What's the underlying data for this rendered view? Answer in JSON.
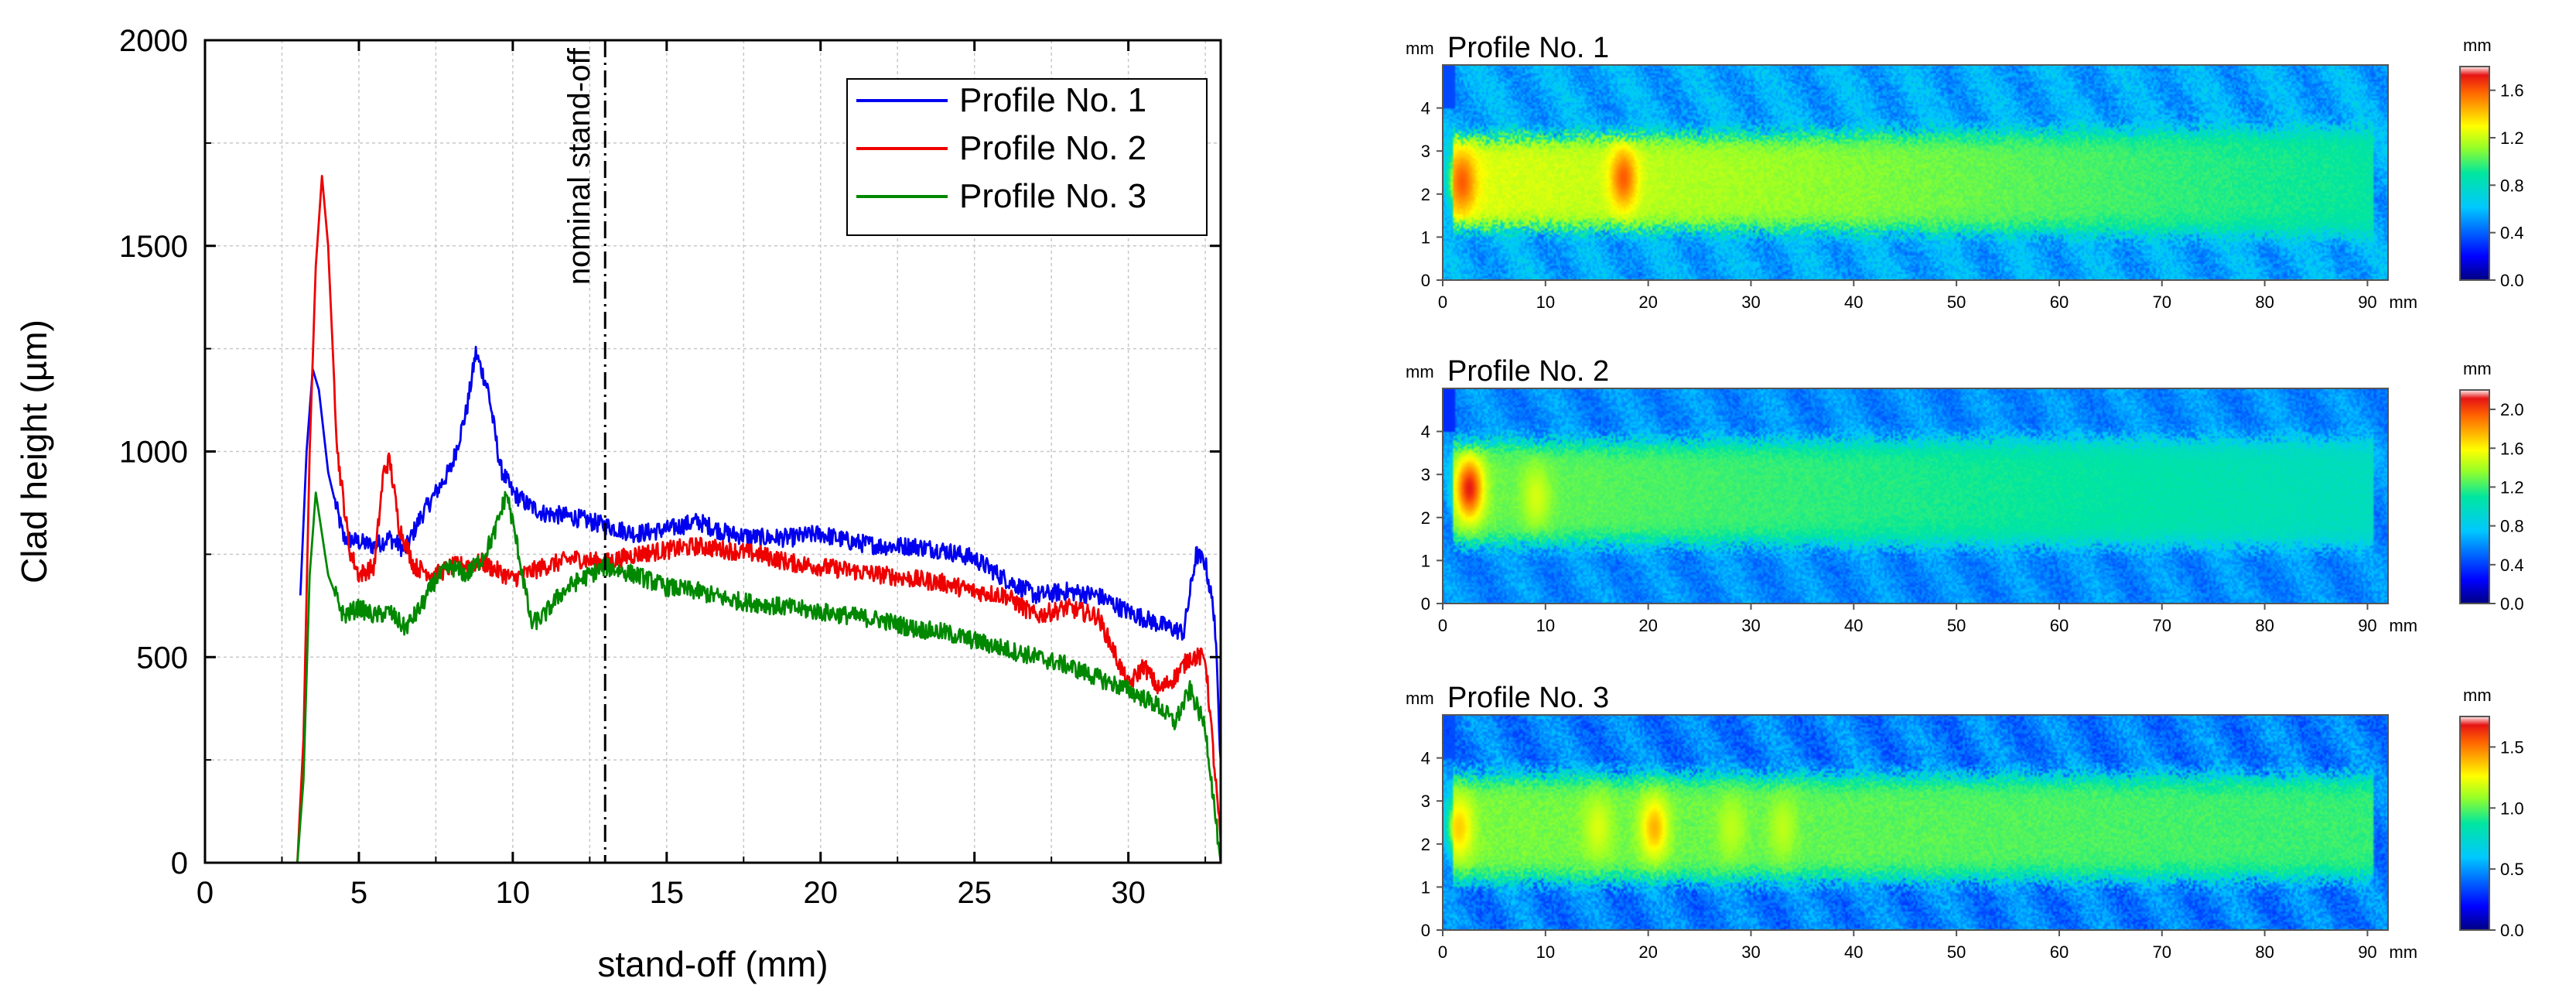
{
  "chart_data": [
    {
      "type": "line",
      "xlabel": "stand-off (mm)",
      "ylabel": "Clad height (µm)",
      "xlim": [
        0,
        33
      ],
      "ylim": [
        0,
        2000
      ],
      "xticks": [
        0,
        5,
        10,
        15,
        20,
        25,
        30
      ],
      "xtick_labels": [
        "0",
        "5",
        "10",
        "15",
        "20",
        "25",
        "30"
      ],
      "yticks": [
        0,
        500,
        1000,
        1500,
        2000
      ],
      "ytick_labels": [
        "0",
        "500",
        "1000",
        "1500",
        "2000"
      ],
      "grid": true,
      "legend_position": "top-right",
      "annotation": {
        "x": 13,
        "label": "nominal stand-off"
      },
      "series": [
        {
          "name": "Profile No. 1",
          "color": "#0000ee",
          "x": [
            3.1,
            3.3,
            3.5,
            3.7,
            4.0,
            4.5,
            5.0,
            5.5,
            6.0,
            6.5,
            7.0,
            7.5,
            8.0,
            8.5,
            8.8,
            9.2,
            9.6,
            10.0,
            10.5,
            11.0,
            12.0,
            13.0,
            14.0,
            15.0,
            16.0,
            17.0,
            18.0,
            19.0,
            20.0,
            21.0,
            22.0,
            23.0,
            24.0,
            25.0,
            26.0,
            27.0,
            28.0,
            29.0,
            30.0,
            31.0,
            31.8,
            32.2,
            32.5,
            32.8,
            33.0
          ],
          "y": [
            650,
            1000,
            1200,
            1150,
            950,
            790,
            780,
            770,
            790,
            760,
            840,
            900,
            960,
            1100,
            1240,
            1150,
            960,
            900,
            870,
            850,
            840,
            820,
            800,
            810,
            830,
            800,
            790,
            790,
            800,
            780,
            770,
            770,
            760,
            740,
            690,
            650,
            660,
            650,
            610,
            580,
            560,
            750,
            730,
            600,
            250
          ]
        },
        {
          "name": "Profile No. 2",
          "color": "#ee0000",
          "x": [
            3.0,
            3.2,
            3.4,
            3.6,
            3.8,
            4.0,
            4.3,
            4.7,
            5.0,
            5.5,
            5.8,
            6.0,
            6.3,
            6.8,
            7.5,
            8.0,
            9.0,
            10.0,
            11.0,
            12.0,
            13.0,
            14.0,
            15.0,
            16.0,
            17.0,
            18.0,
            19.0,
            20.0,
            21.0,
            22.0,
            23.0,
            24.0,
            25.0,
            26.0,
            27.0,
            28.0,
            29.0,
            29.5,
            30.0,
            30.5,
            31.0,
            31.5,
            32.0,
            32.5,
            33.0
          ],
          "y": [
            0,
            300,
            1000,
            1450,
            1670,
            1500,
            1000,
            760,
            700,
            720,
            950,
            980,
            820,
            720,
            700,
            720,
            730,
            690,
            720,
            740,
            730,
            750,
            760,
            770,
            760,
            750,
            730,
            720,
            710,
            700,
            690,
            680,
            660,
            650,
            600,
            620,
            600,
            520,
            430,
            480,
            420,
            450,
            500,
            500,
            50
          ]
        },
        {
          "name": "Profile No. 3",
          "color": "#008800",
          "x": [
            3.0,
            3.2,
            3.4,
            3.6,
            4.0,
            4.5,
            5.0,
            5.5,
            6.0,
            6.5,
            7.0,
            7.5,
            8.0,
            8.5,
            9.0,
            9.4,
            9.8,
            10.2,
            10.6,
            11.0,
            11.5,
            12.0,
            13.0,
            14.0,
            15.0,
            16.0,
            17.0,
            18.0,
            19.0,
            20.0,
            21.0,
            22.0,
            23.0,
            24.0,
            25.0,
            26.0,
            27.0,
            28.0,
            29.0,
            30.0,
            31.0,
            31.5,
            32.0,
            32.5,
            33.0
          ],
          "y": [
            0,
            200,
            700,
            900,
            700,
            600,
            620,
            600,
            610,
            570,
            620,
            690,
            720,
            700,
            740,
            800,
            900,
            750,
            580,
            600,
            650,
            680,
            720,
            700,
            670,
            660,
            640,
            630,
            620,
            610,
            600,
            590,
            570,
            560,
            540,
            520,
            500,
            480,
            450,
            420,
            380,
            340,
            420,
            330,
            0
          ]
        }
      ]
    },
    {
      "type": "heatmap",
      "title": "Profile No. 1",
      "x_unit": "mm",
      "y_unit": "mm",
      "colorbar_unit": "mm",
      "xlim": [
        0,
        92
      ],
      "ylim": [
        0,
        5
      ],
      "xticks": [
        0,
        10,
        20,
        30,
        40,
        50,
        60,
        70,
        80,
        90
      ],
      "xtick_labels": [
        "0",
        "10",
        "20",
        "30",
        "40",
        "50",
        "60",
        "70",
        "80",
        "90"
      ],
      "yticks": [
        0,
        1,
        2,
        3,
        4
      ],
      "ytick_labels": [
        "0",
        "1",
        "2",
        "3",
        "4"
      ],
      "colorbar_range": [
        0,
        1.8
      ],
      "colorbar_ticks": [
        0.0,
        0.4,
        0.8,
        1.2,
        1.6
      ],
      "colorbar_tick_labels": [
        "0.0",
        "0.4",
        "0.8",
        "1.2",
        "1.6"
      ],
      "track": {
        "x_start": 1,
        "x_end": 89,
        "y_center": 2.3,
        "width_start": 2.0,
        "width_end": 2.3,
        "level_start": 1.25,
        "level_end": 0.9
      },
      "hotspots": [
        {
          "x": 1.8,
          "y": 2.3,
          "value": 1.6
        },
        {
          "x": 17.5,
          "y": 2.4,
          "value": 1.6
        },
        {
          "x": 88,
          "y": 2.3,
          "value": 0.9
        }
      ],
      "background_level": 0.55
    },
    {
      "type": "heatmap",
      "title": "Profile No. 2",
      "x_unit": "mm",
      "y_unit": "mm",
      "colorbar_unit": "mm",
      "xlim": [
        0,
        92
      ],
      "ylim": [
        0,
        5
      ],
      "xticks": [
        0,
        10,
        20,
        30,
        40,
        50,
        60,
        70,
        80,
        90
      ],
      "xtick_labels": [
        "0",
        "10",
        "20",
        "30",
        "40",
        "50",
        "60",
        "70",
        "80",
        "90"
      ],
      "yticks": [
        0,
        1,
        2,
        3,
        4
      ],
      "ytick_labels": [
        "0",
        "1",
        "2",
        "3",
        "4"
      ],
      "colorbar_range": [
        0,
        2.2
      ],
      "colorbar_ticks": [
        0.0,
        0.4,
        0.8,
        1.2,
        1.6,
        2.0
      ],
      "colorbar_tick_labels": [
        "0.0",
        "0.4",
        "0.8",
        "1.2",
        "1.6",
        "2.0"
      ],
      "track": {
        "x_start": 1,
        "x_end": 89,
        "y_center": 2.6,
        "width_start": 2.2,
        "width_end": 2.3,
        "level_start": 1.3,
        "level_end": 1.0
      },
      "hotspots": [
        {
          "x": 2.5,
          "y": 2.7,
          "value": 2.1
        },
        {
          "x": 9,
          "y": 2.5,
          "value": 1.5
        }
      ],
      "background_level": 0.6
    },
    {
      "type": "heatmap",
      "title": "Profile No. 3",
      "x_unit": "mm",
      "y_unit": "mm",
      "colorbar_unit": "mm",
      "xlim": [
        0,
        92
      ],
      "ylim": [
        0,
        5
      ],
      "xticks": [
        0,
        10,
        20,
        30,
        40,
        50,
        60,
        70,
        80,
        90
      ],
      "xtick_labels": [
        "0",
        "10",
        "20",
        "30",
        "40",
        "50",
        "60",
        "70",
        "80",
        "90"
      ],
      "yticks": [
        0,
        1,
        2,
        3,
        4
      ],
      "ytick_labels": [
        "0",
        "1",
        "2",
        "3",
        "4"
      ],
      "colorbar_range": [
        0,
        1.75
      ],
      "colorbar_ticks": [
        0.0,
        0.5,
        1.0,
        1.5
      ],
      "colorbar_tick_labels": [
        "0.0",
        "0.5",
        "1.0",
        "1.5"
      ],
      "track": {
        "x_start": 1,
        "x_end": 89,
        "y_center": 2.4,
        "width_start": 2.3,
        "width_end": 2.2,
        "level_start": 1.05,
        "level_end": 0.95
      },
      "hotspots": [
        {
          "x": 1.5,
          "y": 2.4,
          "value": 1.35
        },
        {
          "x": 20.5,
          "y": 2.4,
          "value": 1.4
        },
        {
          "x": 15,
          "y": 2.4,
          "value": 1.2
        },
        {
          "x": 28,
          "y": 2.4,
          "value": 1.15
        },
        {
          "x": 33,
          "y": 2.4,
          "value": 1.15
        }
      ],
      "background_level": 0.45
    }
  ]
}
